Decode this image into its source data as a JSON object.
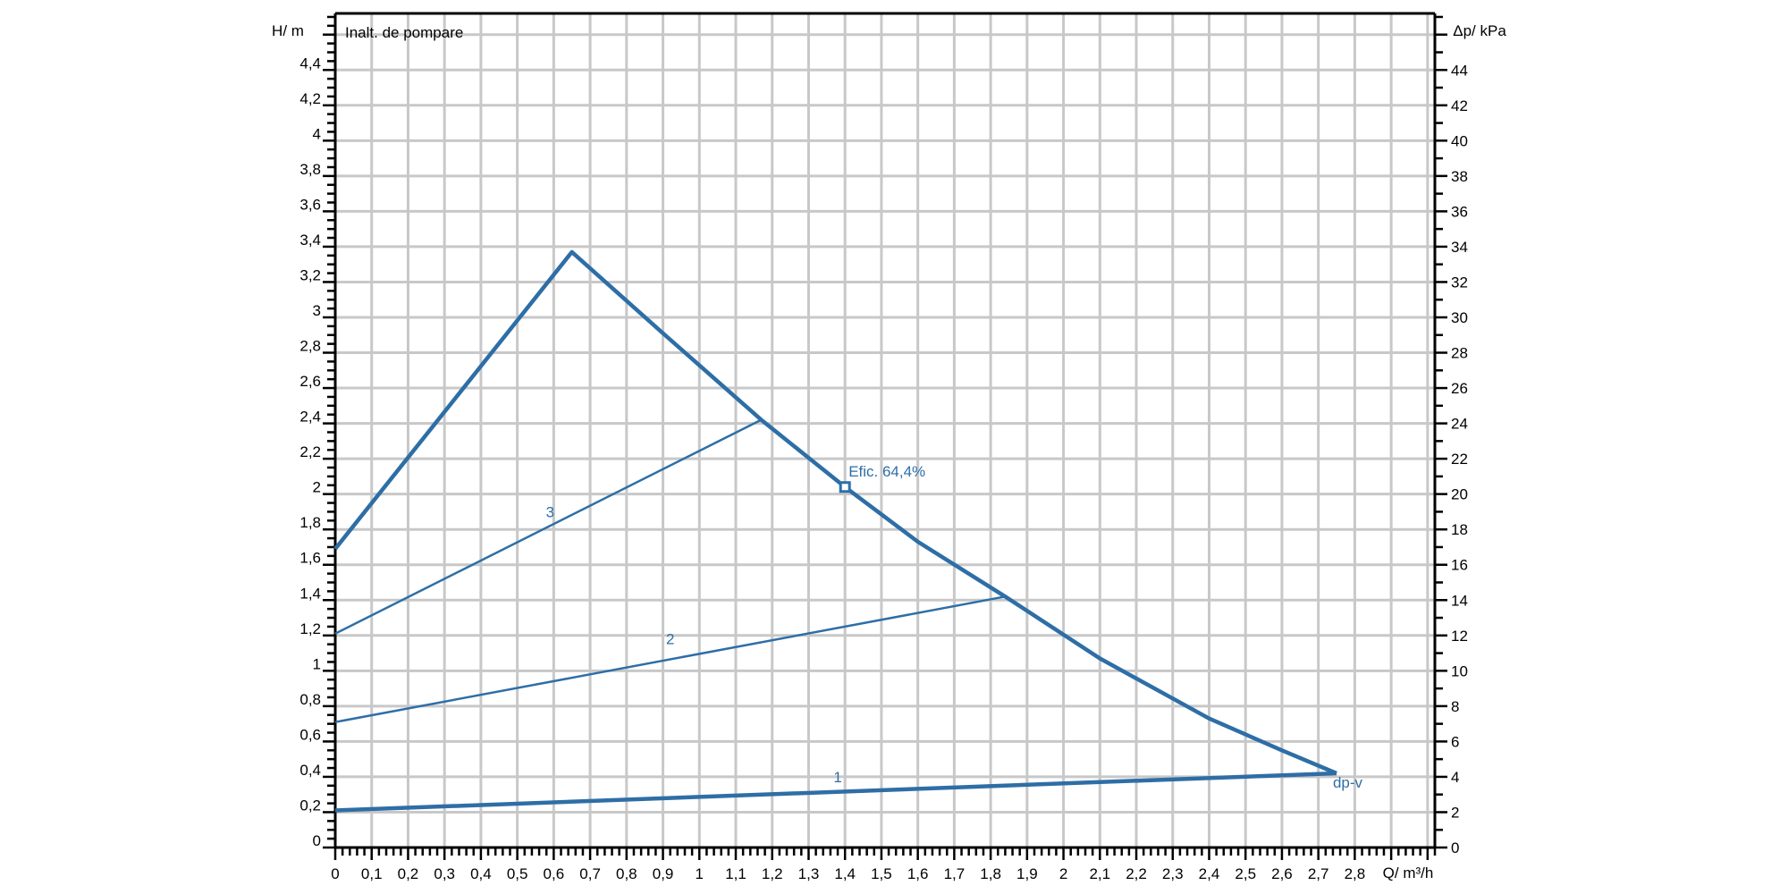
{
  "chart_data": {
    "type": "line",
    "title": "Inalt. de pompare",
    "xlabel": "Q/ m³/h",
    "ylabel": "H/ m",
    "ylabel_right": "Δp/ kPa",
    "xlim": [
      0,
      3.02
    ],
    "ylim": [
      0,
      4.72
    ],
    "ylim_right": [
      0,
      47.2
    ],
    "grid": true,
    "x_ticks": [
      "0",
      "0,1",
      "0,2",
      "0,3",
      "0,4",
      "0,5",
      "0,6",
      "0,7",
      "0,8",
      "0,9",
      "1",
      "1,1",
      "1,2",
      "1,3",
      "1,4",
      "1,5",
      "1,6",
      "1,7",
      "1,8",
      "1,9",
      "2",
      "2,1",
      "2,2",
      "2,3",
      "2,4",
      "2,5",
      "2,6",
      "2,7",
      "2,8"
    ],
    "y_ticks": [
      "0",
      "0,2",
      "0,4",
      "0,6",
      "0,8",
      "1",
      "1,2",
      "1,4",
      "1,6",
      "1,8",
      "2",
      "2,2",
      "2,4",
      "2,6",
      "2,8",
      "3",
      "3,2",
      "3,4",
      "3,6",
      "3,8",
      "4",
      "4,2",
      "4,4"
    ],
    "y_ticks_right": [
      "0",
      "2",
      "4",
      "6",
      "8",
      "10",
      "12",
      "14",
      "16",
      "18",
      "20",
      "22",
      "24",
      "26",
      "28",
      "30",
      "32",
      "34",
      "36",
      "38",
      "40",
      "42",
      "44"
    ],
    "series_color": "#2e6ea6",
    "series": [
      {
        "name": "dp-v",
        "style": "thick",
        "x": [
          0,
          0.65,
          0.9,
          1.17,
          1.4,
          1.6,
          1.84,
          2.1,
          2.4,
          2.6,
          2.75
        ],
        "y": [
          1.69,
          3.37,
          2.91,
          2.42,
          2.04,
          1.73,
          1.42,
          1.07,
          0.73,
          0.55,
          0.42
        ]
      },
      {
        "name": "1",
        "style": "thick",
        "x": [
          0,
          2.75
        ],
        "y": [
          0.21,
          0.42
        ]
      },
      {
        "name": "2",
        "style": "thin",
        "x": [
          0,
          1.84
        ],
        "y": [
          0.71,
          1.42
        ]
      },
      {
        "name": "3",
        "style": "thin",
        "x": [
          0,
          1.17
        ],
        "y": [
          1.21,
          2.42
        ]
      }
    ],
    "series_labels": [
      {
        "text": "3",
        "x": 0.59,
        "y": 1.87
      },
      {
        "text": "2",
        "x": 0.92,
        "y": 1.15
      },
      {
        "text": "1",
        "x": 1.38,
        "y": 0.37
      },
      {
        "text": "dp-v",
        "x": 2.74,
        "y": 0.34
      }
    ],
    "annotation": {
      "text": "Efic. 64,4%",
      "x": 1.4,
      "y": 2.04
    }
  }
}
